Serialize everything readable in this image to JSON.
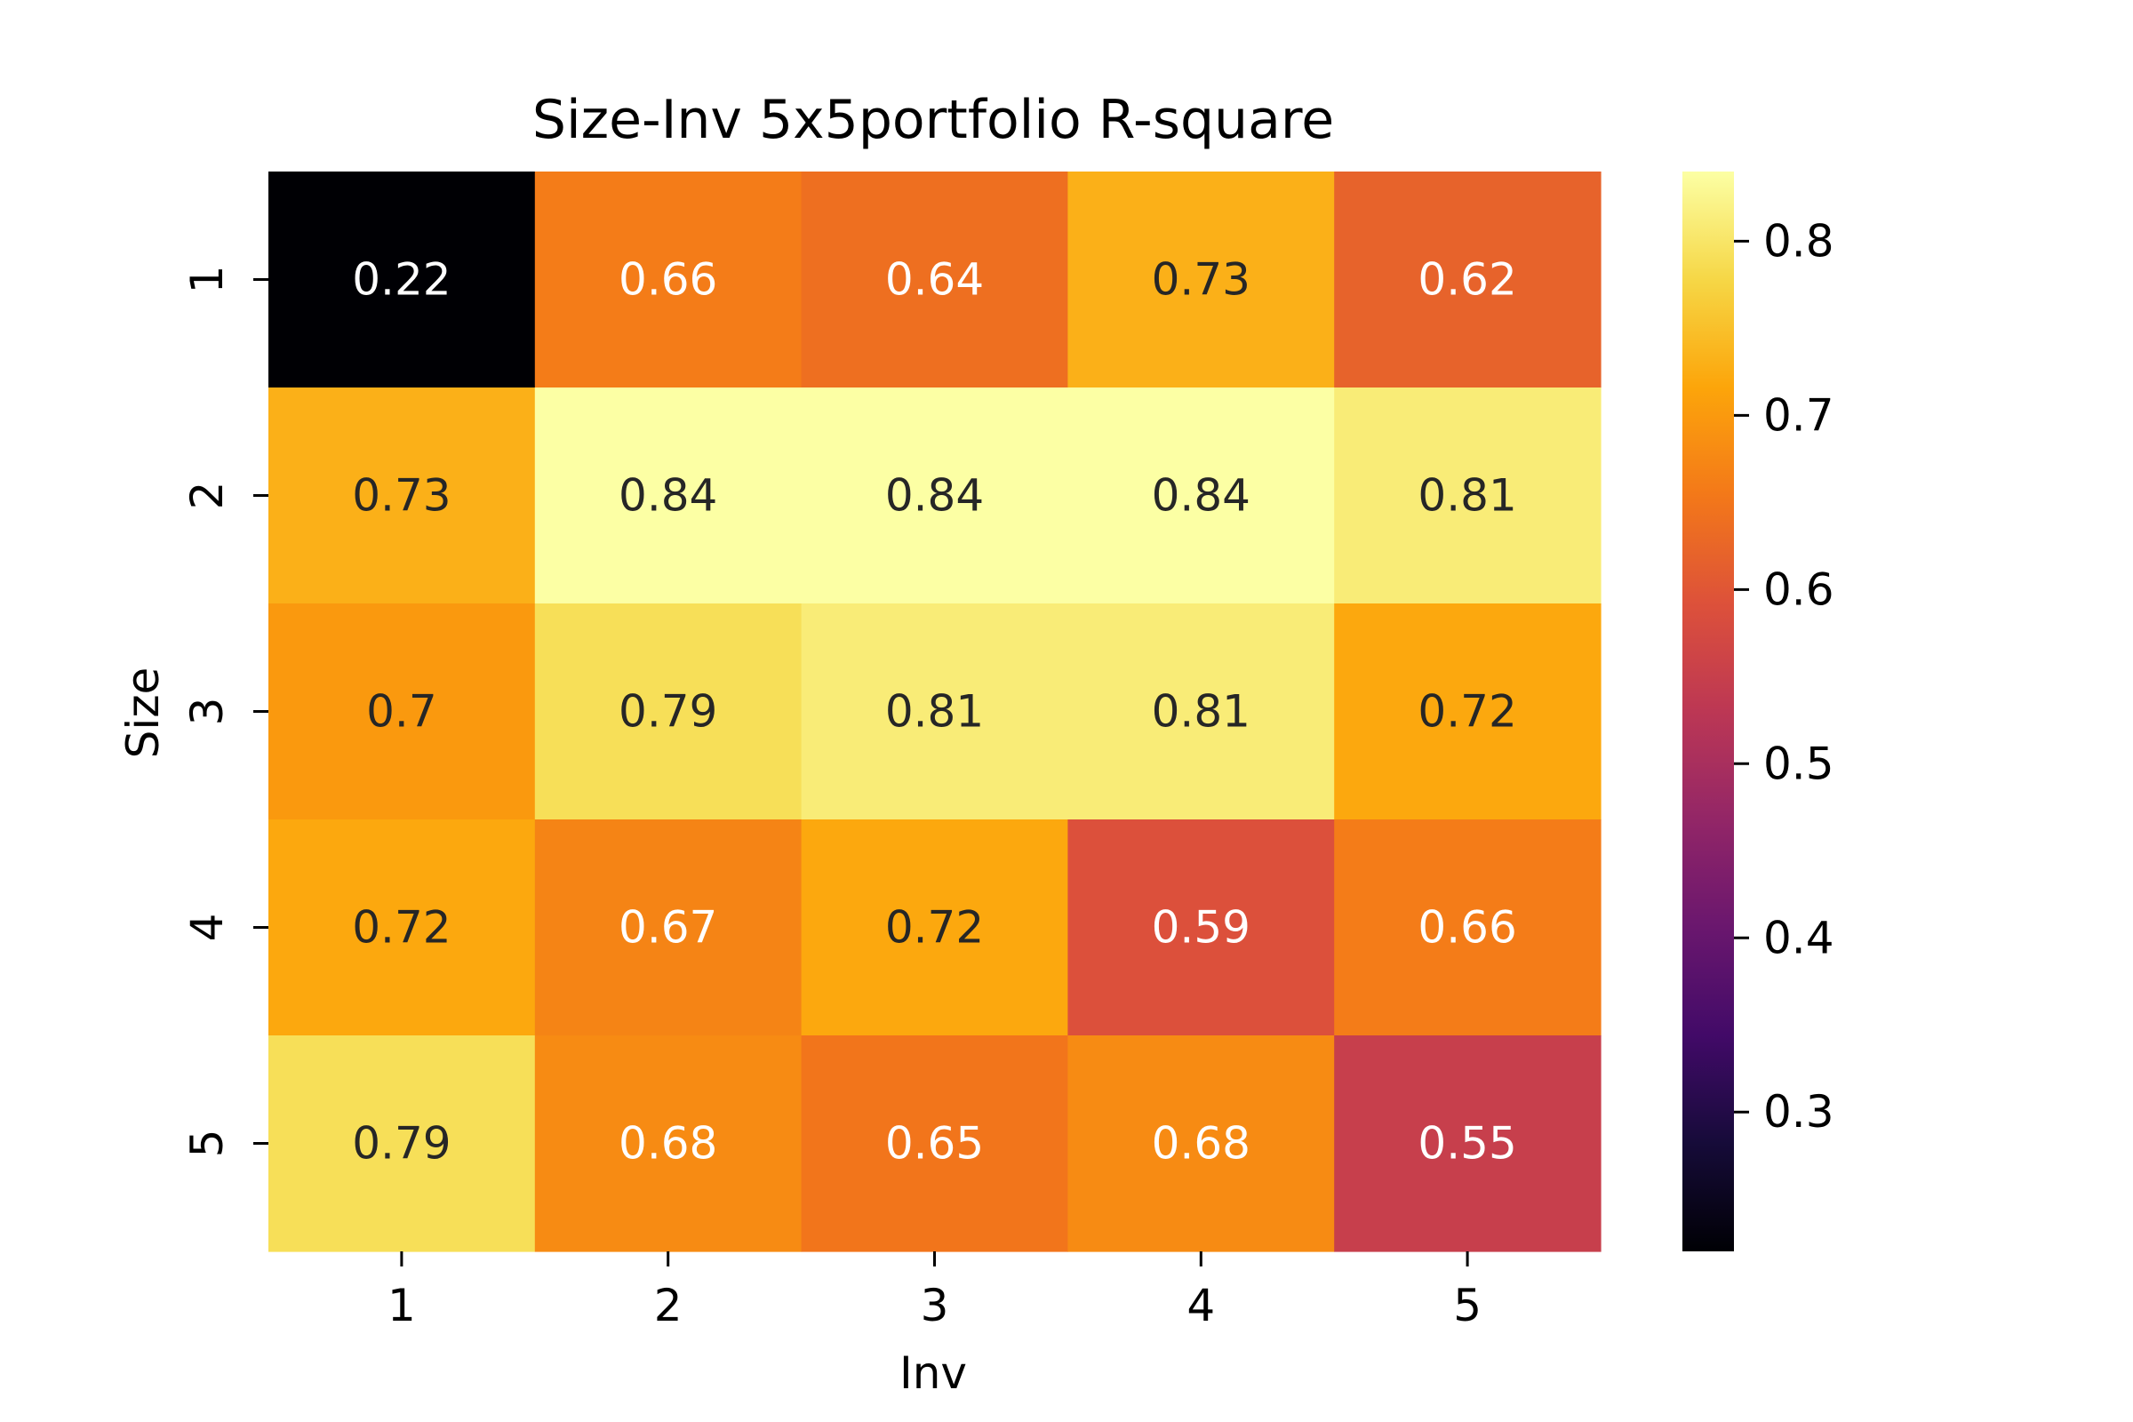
{
  "chart_data": {
    "type": "heatmap",
    "title": "Size-Inv 5x5portfolio R-square",
    "xlabel": "Inv",
    "ylabel": "Size",
    "x_categories": [
      "1",
      "2",
      "3",
      "4",
      "5"
    ],
    "y_categories": [
      "1",
      "2",
      "3",
      "4",
      "5"
    ],
    "values": [
      [
        0.22,
        0.66,
        0.64,
        0.73,
        0.62
      ],
      [
        0.73,
        0.84,
        0.84,
        0.84,
        0.81
      ],
      [
        0.7,
        0.79,
        0.81,
        0.81,
        0.72
      ],
      [
        0.72,
        0.67,
        0.72,
        0.59,
        0.66
      ],
      [
        0.79,
        0.68,
        0.65,
        0.68,
        0.55
      ]
    ],
    "annotations": [
      [
        "0.22",
        "0.66",
        "0.64",
        "0.73",
        "0.62"
      ],
      [
        "0.73",
        "0.84",
        "0.84",
        "0.84",
        "0.81"
      ],
      [
        "0.7",
        "0.79",
        "0.81",
        "0.81",
        "0.72"
      ],
      [
        "0.72",
        "0.67",
        "0.72",
        "0.59",
        "0.66"
      ],
      [
        "0.79",
        "0.68",
        "0.65",
        "0.68",
        "0.55"
      ]
    ],
    "colormap": "inferno",
    "vmin": 0.22,
    "vmax": 0.84,
    "colorbar": {
      "ticks": [
        0.3,
        0.4,
        0.5,
        0.6,
        0.7,
        0.8
      ],
      "tick_labels": [
        "0.3",
        "0.4",
        "0.5",
        "0.6",
        "0.7",
        "0.8"
      ],
      "placement": "right"
    },
    "annotation_colors": {
      "light": "#ffffff",
      "dark": "#262626"
    },
    "grid": false
  }
}
